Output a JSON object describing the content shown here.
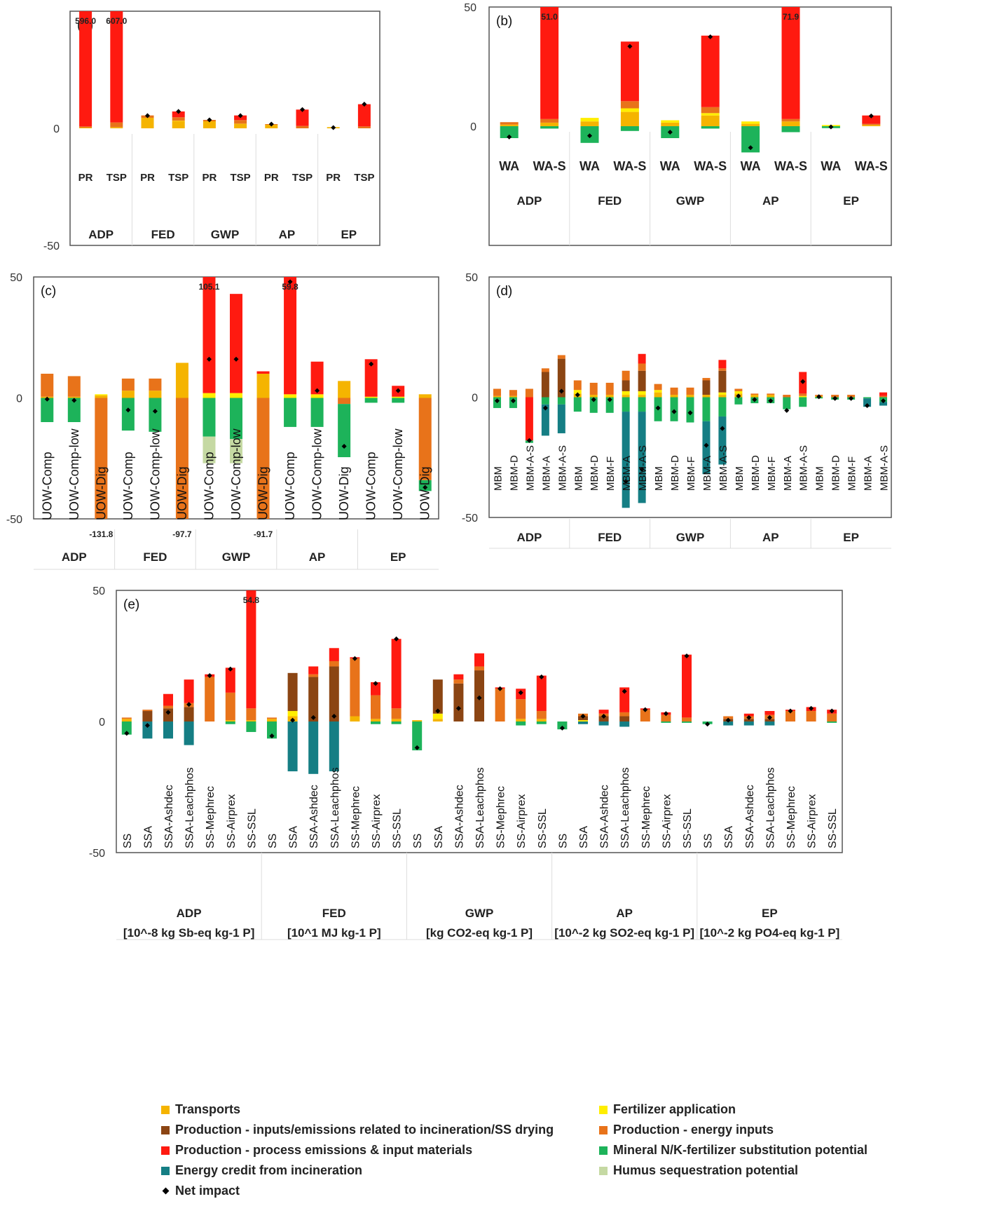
{
  "colors": {
    "transports": "#f5b400",
    "fertilizer": "#ffee00",
    "incineration": "#8b4513",
    "energy": "#e8731a",
    "process": "#ff1a10",
    "mineral": "#1db35a",
    "credit": "#157e84",
    "humus": "#c5d9a3",
    "axis": "#555555",
    "grid": "#dddddd"
  },
  "legend": [
    {
      "key": "transports",
      "label": "Transports"
    },
    {
      "key": "fertilizer",
      "label": "Fertilizer application"
    },
    {
      "key": "incineration",
      "label": "Production - inputs/emissions related to incineration/SS drying"
    },
    {
      "key": "energy",
      "label": "Production - energy inputs"
    },
    {
      "key": "process",
      "label": "Production - process emissions & input materials"
    },
    {
      "key": "mineral",
      "label": "Mineral N/K-fertilizer substitution potential"
    },
    {
      "key": "credit",
      "label": "Energy credit from incineration"
    },
    {
      "key": "humus",
      "label": "Humus sequestration potential"
    },
    {
      "key": "net",
      "label": "Net impact"
    }
  ],
  "chart_data": [
    {
      "type": "bar",
      "panel": "(a)",
      "ylim": [
        -50,
        50
      ],
      "ytick_labels": [
        "0",
        "-50"
      ],
      "groups": [
        "ADP",
        "FED",
        "GWP",
        "AP",
        "EP"
      ],
      "categories": [
        "PR",
        "TSP",
        "PR",
        "TSP",
        "PR",
        "TSP",
        "PR",
        "TSP",
        "PR",
        "TSP"
      ],
      "overflow_labels": [
        {
          "index": 0,
          "label": "596.0"
        },
        {
          "index": 1,
          "label": "607.0"
        }
      ],
      "stacks": [
        {
          "transports": 0.3,
          "energy": 0.5,
          "process": 595.2,
          "net": 596.0
        },
        {
          "transports": 0.5,
          "energy": 2.0,
          "process": 604.5,
          "net": 607.0
        },
        {
          "transports": 4.5,
          "energy": 1.0,
          "net": 5.4
        },
        {
          "transports": 3.0,
          "energy": 1.5,
          "process": 2.5,
          "fertilizer": 0.2,
          "net": 7.2
        },
        {
          "transports": 3.0,
          "energy": 0.6,
          "net": 3.6
        },
        {
          "transports": 2.0,
          "energy": 1.5,
          "process": 2.0,
          "net": 5.4
        },
        {
          "transports": 1.5,
          "energy": 0.3,
          "net": 1.8
        },
        {
          "energy": 1.0,
          "process": 7.0,
          "net": 8.0
        },
        {
          "transports": 0.5,
          "net": 0.3
        },
        {
          "energy": 0.8,
          "process": 9.5,
          "net": 10.3
        }
      ]
    },
    {
      "type": "bar",
      "panel": "(b)",
      "ylim": [
        -50,
        50
      ],
      "ytick_labels": [
        "50",
        "0"
      ],
      "groups": [
        "ADP",
        "FED",
        "GWP",
        "AP",
        "EP"
      ],
      "categories": [
        "WA",
        "WA-S",
        "WA",
        "WA-S",
        "WA",
        "WA-S",
        "WA",
        "WA-S",
        "WA",
        "WA-S"
      ],
      "overflow_labels": [
        {
          "index": 1,
          "label": "51.0"
        },
        {
          "index": 7,
          "label": "71.9"
        }
      ],
      "stacks": [
        {
          "transports": 0.7,
          "energy": 1.0,
          "mineral": -5.0,
          "net": -4.5
        },
        {
          "transports": 1.5,
          "energy": 1.5,
          "process": 48.5,
          "mineral": -1.0,
          "net": 51.0
        },
        {
          "transports": 2.0,
          "fertilizer": 1.5,
          "mineral": -7.0,
          "net": -4.0
        },
        {
          "transports": 6.0,
          "fertilizer": 1.5,
          "energy": 3.0,
          "process": 25.0,
          "mineral": -2.0,
          "net": 33.5
        },
        {
          "transports": 1.5,
          "fertilizer": 1.0,
          "mineral": -5.0,
          "net": -2.5
        },
        {
          "transports": 4.5,
          "fertilizer": 1.0,
          "energy": 2.5,
          "process": 30.0,
          "mineral": -1.0,
          "net": 37.5
        },
        {
          "transports": 1.0,
          "fertilizer": 1.0,
          "mineral": -11.0,
          "net": -9.0
        },
        {
          "transports": 2.0,
          "energy": 1.0,
          "process": 70.0,
          "mineral": -2.5,
          "net": 71.9
        },
        {
          "fertilizer": 0.5,
          "mineral": -0.8,
          "net": -0.3
        },
        {
          "transports": 0.5,
          "energy": 0.5,
          "process": 3.5,
          "net": 4.3
        }
      ]
    },
    {
      "type": "bar",
      "panel": "(c)",
      "ylim": [
        -50,
        50
      ],
      "ytick_labels": [
        "50",
        "0",
        "-50"
      ],
      "groups": [
        "ADP",
        "FED",
        "GWP",
        "AP",
        "EP"
      ],
      "categories": [
        "UOW-Comp",
        "UOW-Comp-low",
        "UOW-Dig",
        "UOW-Comp",
        "UOW-Comp-low",
        "UOW-Dig",
        "UOW-Comp",
        "UOW-Comp-low",
        "UOW-Dig",
        "UOW-Comp",
        "UOW-Comp-low",
        "UOW-Dig",
        "UOW-Comp",
        "UOW-Comp-low",
        "UOW-Dig"
      ],
      "overflow_labels": [
        {
          "index": 2,
          "label": "-131.8"
        },
        {
          "index": 5,
          "label": "-97.7"
        },
        {
          "index": 6,
          "label": "105.1"
        },
        {
          "index": 8,
          "label": "-91.7"
        },
        {
          "index": 9,
          "label": "59.8"
        }
      ],
      "stacks": [
        {
          "transports": 0.5,
          "energy": 9.5,
          "mineral": -10.0,
          "net": -0.5
        },
        {
          "transports": 0.5,
          "energy": 8.5,
          "mineral": -10.0,
          "net": -1.0
        },
        {
          "transports": 1.0,
          "fertilizer": 0.5,
          "energy": -131.8,
          "net": -131.0
        },
        {
          "transports": 3.0,
          "energy": 5.0,
          "mineral": -13.5,
          "net": -5.0
        },
        {
          "transports": 3.0,
          "energy": 5.0,
          "mineral": -14.0,
          "net": -5.5
        },
        {
          "transports": 14.5,
          "energy": -97.7,
          "net": -97.0
        },
        {
          "fertilizer": 2.0,
          "process": 103.1,
          "mineral": -16.0,
          "humus": -11.0,
          "net": 16.0
        },
        {
          "fertilizer": 2.0,
          "process": 41.0,
          "mineral": -17.0,
          "humus": -10.0,
          "net": 16.0
        },
        {
          "transports": 10.0,
          "process": 1.0,
          "energy": -91.7,
          "net": -90.5
        },
        {
          "fertilizer": 1.5,
          "process": 58.3,
          "mineral": -12.0,
          "net": 48.0
        },
        {
          "fertilizer": 1.5,
          "process": 13.5,
          "mineral": -12.0,
          "net": 3.0
        },
        {
          "transports": 7.0,
          "energy": -2.5,
          "mineral": -22.0,
          "net": -20.0
        },
        {
          "fertilizer": 0.5,
          "process": 15.5,
          "mineral": -2.0,
          "net": 14.0
        },
        {
          "fertilizer": 0.5,
          "process": 4.5,
          "mineral": -2.0,
          "net": 3.0
        },
        {
          "transports": 1.5,
          "energy": -34.0,
          "mineral": -4.5,
          "net": -37.0
        }
      ]
    },
    {
      "type": "bar",
      "panel": "(d)",
      "ylim": [
        -50,
        50
      ],
      "ytick_labels": [
        "50",
        "0",
        "-50"
      ],
      "groups": [
        "ADP",
        "FED",
        "GWP",
        "AP",
        "EP"
      ],
      "categories": [
        "MBM",
        "MBM-D",
        "MBM-A-S",
        "MBM-A",
        "MBM-A-S",
        "MBM",
        "MBM-D",
        "MBM-F",
        "MBM-A",
        "MBM-A-S",
        "MBM",
        "MBM-D",
        "MBM-F",
        "MBM-A",
        "MBM-A-S",
        "MBM",
        "MBM-D",
        "MBM-F",
        "MBM-A",
        "MBM-A-S",
        "MBM",
        "MBM-D",
        "MBM-F",
        "MBM-A",
        "MBM-A-S"
      ],
      "stacks": [
        {
          "transports": 0.5,
          "energy": 3.0,
          "mineral": -4.5,
          "net": -1.5
        },
        {
          "transports": 0.5,
          "energy": 2.5,
          "mineral": -4.5,
          "net": -1.5
        },
        {
          "energy": 3.5,
          "process": -18.0,
          "mineral": -1.0,
          "net": -18.0
        },
        {
          "energy": 1.5,
          "incineration": 10.5,
          "mineral": -3.0,
          "credit": -13.0,
          "net": -4.5
        },
        {
          "energy": 1.5,
          "incineration": 16.0,
          "mineral": -3.0,
          "credit": -12.0,
          "net": 2.5
        },
        {
          "fertilizer": 1.5,
          "transports": 1.5,
          "energy": 4.0,
          "mineral": -6.0,
          "net": 1.0
        },
        {
          "transports": 1.0,
          "energy": 5.0,
          "mineral": -6.5,
          "net": -1.0
        },
        {
          "transports": 1.0,
          "energy": 5.0,
          "mineral": -6.5,
          "net": -1.0
        },
        {
          "transports": 1.0,
          "energy": 4.0,
          "incineration": 4.5,
          "fertilizer": 1.5,
          "mineral": -6.0,
          "credit": -40.0,
          "net": -35.0
        },
        {
          "transports": 1.0,
          "energy": 3.0,
          "process": 4.0,
          "incineration": 8.5,
          "fertilizer": 1.5,
          "mineral": -6.0,
          "credit": -38.0,
          "net": -30.0
        },
        {
          "fertilizer": 1.0,
          "transports": 2.0,
          "energy": 2.5,
          "mineral": -10.0,
          "net": -4.5
        },
        {
          "transports": 1.0,
          "energy": 3.0,
          "mineral": -10.0,
          "net": -6.0
        },
        {
          "transports": 1.0,
          "energy": 3.0,
          "mineral": -10.5,
          "net": -6.5
        },
        {
          "transports": 1.0,
          "energy": 1.0,
          "incineration": 6.0,
          "mineral": -10.0,
          "credit": -22.0,
          "net": -20.0
        },
        {
          "transports": 1.0,
          "energy": 1.0,
          "process": 3.5,
          "incineration": 9.0,
          "fertilizer": 1.0,
          "mineral": -8.0,
          "credit": -20.0,
          "net": -13.0
        },
        {
          "fertilizer": 1.0,
          "transports": 1.5,
          "energy": 1.0,
          "mineral": -3.0,
          "net": 0.5
        },
        {
          "transports": 1.0,
          "energy": 0.5,
          "mineral": -2.5,
          "net": -1.0
        },
        {
          "transports": 1.0,
          "energy": 0.5,
          "mineral": -2.5,
          "net": -1.5
        },
        {
          "energy": 1.0,
          "mineral": -5.0,
          "net": -5.5
        },
        {
          "energy": 1.0,
          "process": 9.0,
          "fertilizer": 0.5,
          "mineral": -4.0,
          "net": 6.5
        },
        {
          "transports": 0.5,
          "energy": 0.5,
          "mineral": -0.5,
          "net": 0.2
        },
        {
          "energy": 1.0,
          "mineral": -1.0,
          "net": -0.5
        },
        {
          "energy": 1.0,
          "mineral": -1.0,
          "net": -0.5
        },
        {
          "credit": -3.5,
          "mineral": -0.5,
          "net": -3.5
        },
        {
          "energy": 0.5,
          "process": 1.5,
          "mineral": -2.0,
          "credit": -1.5,
          "net": -1.5
        }
      ]
    },
    {
      "type": "bar",
      "panel": "(e)",
      "ylim": [
        -50,
        50
      ],
      "ytick_labels": [
        "50",
        "0",
        "-50"
      ],
      "groups": [
        "ADP",
        "FED",
        "GWP",
        "AP",
        "EP"
      ],
      "group_units": [
        "[10^-8 kg Sb-eq kg-1 P]",
        "[10^1 MJ kg-1 P]",
        "[kg CO2-eq kg-1 P]",
        "[10^-2 kg SO2-eq kg-1 P]",
        "[10^-2 kg PO4-eq kg-1 P]"
      ],
      "categories": [
        "SS",
        "SSA",
        "SSA-Ashdec",
        "SSA-Leachphos",
        "SS-Mephrec",
        "SS-Airprex",
        "SS-SSL",
        "SS",
        "SSA",
        "SSA-Ashdec",
        "SSA-Leachphos",
        "SS-Mephrec",
        "SS-Airprex",
        "SS-SSL",
        "SS",
        "SSA",
        "SSA-Ashdec",
        "SSA-Leachphos",
        "SS-Mephrec",
        "SS-Airprex",
        "SS-SSL",
        "SS",
        "SSA",
        "SSA-Ashdec",
        "SSA-Leachphos",
        "SS-Mephrec",
        "SS-Airprex",
        "SS-SSL",
        "SS",
        "SSA",
        "SSA-Ashdec",
        "SSA-Leachphos",
        "SS-Mephrec",
        "SS-Airprex",
        "SS-SSL"
      ],
      "overflow_labels": [
        {
          "index": 6,
          "label": "54.8"
        }
      ],
      "stacks": [
        {
          "transports": 1.0,
          "energy": 0.5,
          "mineral": -5.0,
          "net": -4.5
        },
        {
          "energy": 0.5,
          "incineration": 4.0,
          "credit": -6.5,
          "net": -1.5
        },
        {
          "energy": 1.0,
          "incineration": 5.0,
          "process": 4.5,
          "credit": -6.5,
          "net": 3.5
        },
        {
          "energy": 1.5,
          "incineration": 5.5,
          "process": 9.0,
          "credit": -9.0,
          "net": 6.5
        },
        {
          "energy": 17.0,
          "process": 1.0,
          "net": 17.5
        },
        {
          "transports": 0.5,
          "energy": 10.5,
          "process": 9.5,
          "mineral": -1.0,
          "net": 20.0
        },
        {
          "transports": 0.5,
          "energy": 4.5,
          "process": 49.8,
          "mineral": -4.0,
          "net": 54.8
        },
        {
          "transports": 1.0,
          "energy": 0.5,
          "mineral": -6.5,
          "net": -5.5
        },
        {
          "fertilizer": 2.0,
          "transports": 2.0,
          "incineration": 14.5,
          "credit": -19.0,
          "net": 0.5
        },
        {
          "energy": 1.0,
          "incineration": 17.0,
          "process": 3.0,
          "credit": -20.0,
          "net": 1.5
        },
        {
          "energy": 2.0,
          "incineration": 21.0,
          "process": 5.0,
          "credit": -19.0,
          "net": 2.0
        },
        {
          "transports": 2.0,
          "energy": 22.0,
          "process": 0.5,
          "net": 24.0
        },
        {
          "transports": 1.0,
          "energy": 9.0,
          "process": 5.0,
          "mineral": -1.0,
          "net": 14.5
        },
        {
          "transports": 1.0,
          "energy": 4.0,
          "process": 26.5,
          "mineral": -1.0,
          "net": 31.5
        },
        {
          "transports": 0.5,
          "mineral": -11.0,
          "net": -10.0
        },
        {
          "fertilizer": 2.0,
          "transports": 1.0,
          "incineration": 13.0,
          "net": 4.0
        },
        {
          "energy": 1.5,
          "incineration": 14.5,
          "process": 2.0,
          "net": 5.0
        },
        {
          "energy": 1.5,
          "incineration": 19.5,
          "process": 5.0,
          "net": 9.0
        },
        {
          "energy": 12.5,
          "process": 0.5,
          "net": 12.5
        },
        {
          "transports": 1.0,
          "energy": 7.5,
          "process": 4.0,
          "mineral": -1.5,
          "net": 11.0
        },
        {
          "transports": 1.0,
          "energy": 3.0,
          "process": 13.5,
          "mineral": -1.0,
          "net": 17.0
        },
        {
          "mineral": -3.0,
          "net": -2.5
        },
        {
          "energy": 1.0,
          "incineration": 1.5,
          "fertilizer": 0.5,
          "credit": -1.0,
          "net": 2.0
        },
        {
          "energy": 1.0,
          "incineration": 2.0,
          "process": 1.5,
          "credit": -1.5,
          "net": 2.0
        },
        {
          "energy": 1.5,
          "incineration": 2.0,
          "process": 9.5,
          "credit": -2.0,
          "net": 11.5
        },
        {
          "energy": 4.5,
          "process": 0.5,
          "net": 4.5
        },
        {
          "energy": 2.5,
          "process": 1.0,
          "mineral": -0.5,
          "net": 3.0
        },
        {
          "energy": 1.5,
          "process": 24.0,
          "mineral": -0.5,
          "net": 25.0
        },
        {
          "mineral": -1.0,
          "net": -1.0
        },
        {
          "energy": 1.0,
          "incineration": 1.0,
          "credit": -1.5,
          "net": 0.5
        },
        {
          "energy": 1.0,
          "incineration": 1.0,
          "process": 1.0,
          "credit": -1.5,
          "net": 1.5
        },
        {
          "energy": 1.5,
          "incineration": 1.0,
          "process": 1.5,
          "credit": -1.5,
          "net": 1.5
        },
        {
          "energy": 4.0,
          "process": 0.5,
          "net": 4.0
        },
        {
          "energy": 4.0,
          "process": 1.5,
          "net": 5.0
        },
        {
          "energy": 3.0,
          "process": 1.5,
          "mineral": -0.5,
          "net": 4.0
        }
      ]
    }
  ]
}
